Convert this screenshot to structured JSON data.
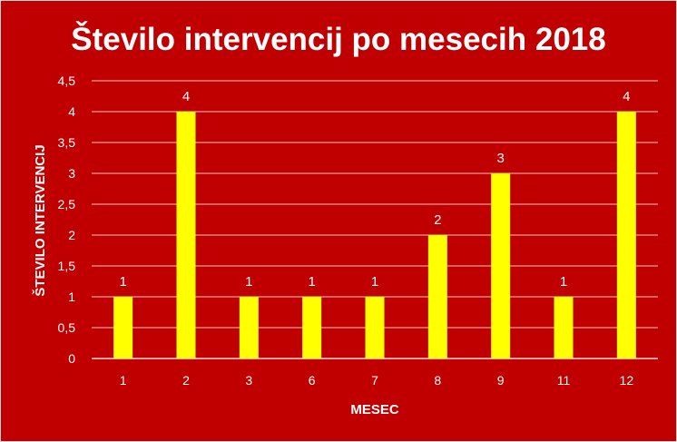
{
  "chart_data": {
    "type": "bar",
    "title": "Število intervencij po mesecih 2018",
    "xlabel": "MESEC",
    "ylabel": "ŠTEVILO INTERVENCIJ",
    "categories": [
      "1",
      "2",
      "3",
      "6",
      "7",
      "8",
      "9",
      "11",
      "12"
    ],
    "values": [
      1,
      4,
      1,
      1,
      1,
      2,
      3,
      1,
      4
    ],
    "data_labels": [
      "1",
      "4",
      "1",
      "1",
      "1",
      "2",
      "3",
      "1",
      "4"
    ],
    "ylim": [
      0,
      4.5
    ],
    "yticks": [
      "0",
      "0,5",
      "1",
      "1,5",
      "2",
      "2,5",
      "3",
      "3,5",
      "4",
      "4,5"
    ],
    "grid": true,
    "legend": "none",
    "colors": {
      "background": "#c00000",
      "bar": "#ffff00",
      "gridline": "#ffffff",
      "text": "#ffffff"
    }
  }
}
